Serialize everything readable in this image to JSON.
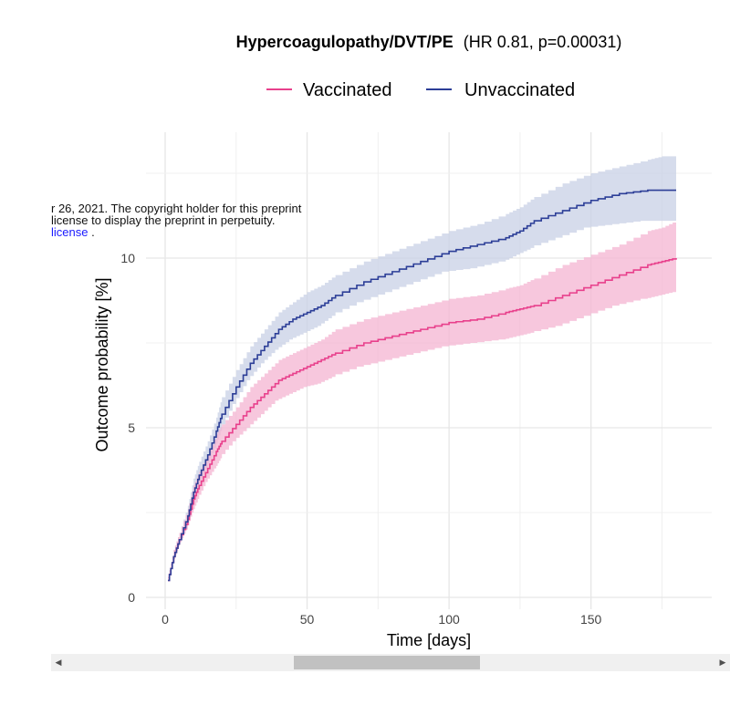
{
  "chart_data": {
    "type": "line",
    "title_bold": "Hypercoagulopathy/DVT/PE",
    "title_rest": "(HR 0.81, p=0.00031)",
    "xlabel": "Time [days]",
    "ylabel": "Outcome probability [%]",
    "xlim": [
      0,
      180
    ],
    "ylim": [
      0,
      13
    ],
    "xticks": [
      0,
      50,
      100,
      150
    ],
    "yticks": [
      0,
      5,
      10
    ],
    "grid": true,
    "legend_position": "top",
    "series": [
      {
        "name": "Vaccinated",
        "color": "#e8408c",
        "band_color": "#f4b4d2",
        "x": [
          1,
          3,
          5,
          8,
          10,
          12,
          15,
          18,
          20,
          25,
          30,
          35,
          40,
          45,
          50,
          55,
          60,
          70,
          80,
          90,
          100,
          110,
          120,
          125,
          130,
          140,
          150,
          160,
          170,
          175,
          180
        ],
        "y": [
          0.5,
          1.2,
          1.7,
          2.3,
          2.9,
          3.3,
          3.8,
          4.3,
          4.6,
          5.1,
          5.6,
          6.0,
          6.4,
          6.6,
          6.8,
          7.0,
          7.2,
          7.5,
          7.7,
          7.9,
          8.1,
          8.2,
          8.4,
          8.5,
          8.6,
          8.9,
          9.2,
          9.5,
          9.8,
          9.9,
          10.0
        ],
        "lower": [
          0.4,
          1.0,
          1.5,
          2.0,
          2.5,
          2.9,
          3.4,
          3.8,
          4.1,
          4.6,
          5.0,
          5.4,
          5.8,
          6.0,
          6.2,
          6.3,
          6.5,
          6.8,
          7.0,
          7.2,
          7.4,
          7.5,
          7.6,
          7.7,
          7.8,
          8.0,
          8.3,
          8.6,
          8.8,
          8.9,
          9.0
        ],
        "upper": [
          0.6,
          1.4,
          1.9,
          2.6,
          3.3,
          3.7,
          4.2,
          4.8,
          5.1,
          5.6,
          6.2,
          6.6,
          7.0,
          7.2,
          7.4,
          7.6,
          7.9,
          8.2,
          8.4,
          8.6,
          8.8,
          8.9,
          9.1,
          9.2,
          9.4,
          9.8,
          10.1,
          10.4,
          10.8,
          10.9,
          11.1
        ]
      },
      {
        "name": "Unvaccinated",
        "color": "#2c3e97",
        "band_color": "#c8d0e6",
        "x": [
          1,
          3,
          5,
          8,
          10,
          12,
          15,
          18,
          20,
          25,
          30,
          35,
          40,
          45,
          50,
          55,
          60,
          70,
          80,
          90,
          100,
          110,
          120,
          125,
          130,
          140,
          150,
          160,
          170,
          175,
          180
        ],
        "y": [
          0.5,
          1.2,
          1.7,
          2.4,
          3.1,
          3.6,
          4.2,
          4.9,
          5.4,
          6.2,
          6.9,
          7.4,
          7.9,
          8.2,
          8.4,
          8.6,
          8.9,
          9.3,
          9.6,
          9.9,
          10.2,
          10.4,
          10.6,
          10.8,
          11.1,
          11.4,
          11.7,
          11.9,
          12.0,
          12.0,
          12.0
        ],
        "lower": [
          0.4,
          1.0,
          1.5,
          2.1,
          2.7,
          3.2,
          3.8,
          4.4,
          4.9,
          5.7,
          6.4,
          6.9,
          7.3,
          7.6,
          7.8,
          8.0,
          8.3,
          8.7,
          9.0,
          9.3,
          9.6,
          9.7,
          9.9,
          10.1,
          10.3,
          10.6,
          10.9,
          11.0,
          11.1,
          11.1,
          11.1
        ],
        "upper": [
          0.6,
          1.4,
          1.9,
          2.7,
          3.5,
          4.0,
          4.6,
          5.3,
          5.9,
          6.7,
          7.4,
          7.9,
          8.4,
          8.7,
          9.0,
          9.2,
          9.5,
          9.9,
          10.2,
          10.5,
          10.8,
          11.0,
          11.3,
          11.5,
          11.8,
          12.2,
          12.5,
          12.7,
          12.9,
          13.0,
          13.0
        ]
      }
    ]
  },
  "watermark": {
    "line1": "r 26, 2021. The copyright holder for this preprint",
    "line2": "license to display the preprint in perpetuity.",
    "line3_link": "license",
    "line3_end": "."
  },
  "scrollbar": {
    "left_icon": "triangle-left-icon",
    "right_icon": "triangle-right-icon"
  }
}
